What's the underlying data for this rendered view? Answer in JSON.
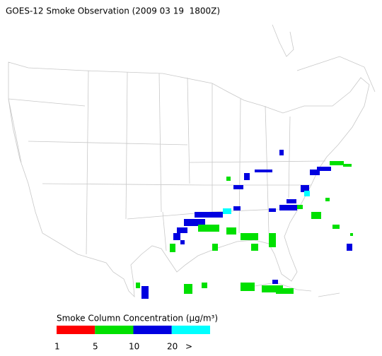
{
  "header": {
    "title": "GOES-12 Smoke Observation (2009 03 19  1800Z)"
  },
  "legend": {
    "title": "Smoke Column Concentration (μg/m³)",
    "colors": [
      "#ff0000",
      "#00e000",
      "#0000e0",
      "#00ffff"
    ],
    "labels": [
      "1",
      "5",
      "10",
      "20",
      ">"
    ]
  }
}
